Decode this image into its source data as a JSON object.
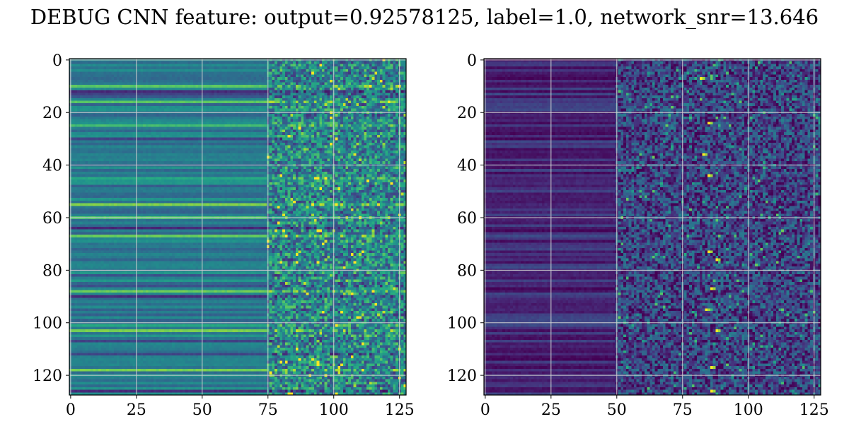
{
  "figure": {
    "title": "DEBUG CNN feature: output=0.92578125, label=1.0, network_snr=13.646"
  },
  "chart_data": [
    {
      "type": "heatmap",
      "name": "left-panel",
      "colormap": "viridis",
      "grid": true,
      "rows": 128,
      "cols": 128,
      "xlim": [
        -0.5,
        127.5
      ],
      "ylim": [
        127.5,
        -0.5
      ],
      "xticks": [
        0,
        25,
        50,
        75,
        100,
        125
      ],
      "yticks": [
        0,
        20,
        40,
        60,
        80,
        100,
        120
      ],
      "xtick_labels": [
        "0",
        "25",
        "50",
        "75",
        "100",
        "125"
      ],
      "ytick_labels": [
        "0",
        "20",
        "40",
        "60",
        "80",
        "100",
        "120"
      ],
      "value_range": [
        0,
        1
      ],
      "structure": {
        "smooth_columns": [
          0,
          74
        ],
        "noisy_columns": [
          75,
          127
        ],
        "mean_level_smooth": 0.42,
        "mean_level_noisy": 0.5,
        "bright_rows": [
          10,
          16,
          25,
          45,
          55,
          60,
          67,
          88,
          101,
          103,
          118
        ],
        "dark_rows": [
          12,
          13,
          14,
          30,
          48,
          64,
          82,
          86,
          90,
          107,
          112,
          126
        ]
      }
    },
    {
      "type": "heatmap",
      "name": "right-panel",
      "colormap": "viridis",
      "grid": true,
      "rows": 128,
      "cols": 128,
      "xlim": [
        -0.5,
        127.5
      ],
      "ylim": [
        127.5,
        -0.5
      ],
      "xticks": [
        0,
        25,
        50,
        75,
        100,
        125
      ],
      "yticks": [
        0,
        20,
        40,
        60,
        80,
        100,
        120
      ],
      "xtick_labels": [
        "0",
        "25",
        "50",
        "75",
        "100",
        "125"
      ],
      "ytick_labels": [
        "0",
        "20",
        "40",
        "60",
        "80",
        "100",
        "120"
      ],
      "value_range": [
        0,
        1
      ],
      "structure": {
        "smooth_columns": [
          0,
          49
        ],
        "noisy_columns": [
          50,
          127
        ],
        "mean_level_smooth": 0.12,
        "mean_level_noisy": 0.2,
        "bright_spots": [
          [
            82,
            7
          ],
          [
            85,
            24
          ],
          [
            83,
            36
          ],
          [
            85,
            44
          ],
          [
            85,
            73
          ],
          [
            88,
            76
          ],
          [
            86,
            87
          ],
          [
            84,
            95
          ],
          [
            88,
            103
          ],
          [
            86,
            117
          ],
          [
            86,
            126
          ]
        ]
      }
    }
  ]
}
